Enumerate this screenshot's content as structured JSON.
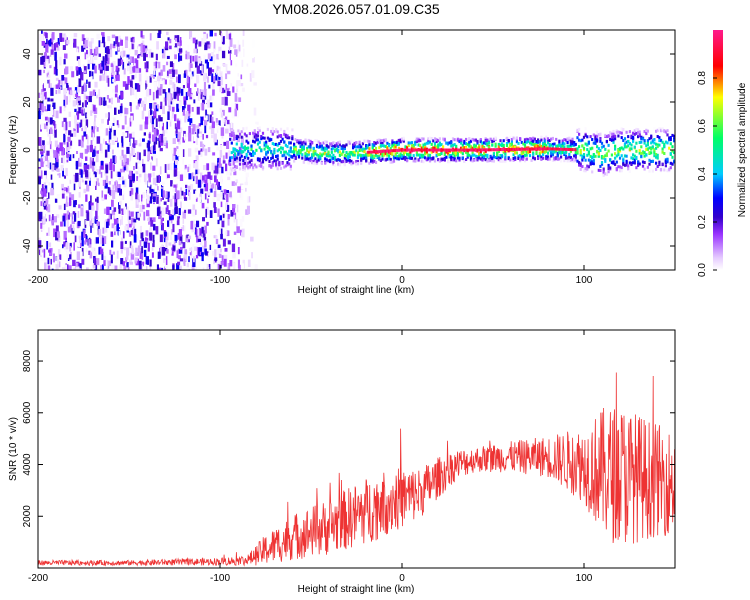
{
  "figure_title": "YM08.2026.057.01.09.C35",
  "chart_data": [
    {
      "type": "heatmap",
      "panel": "spectrogram",
      "title": "YM08.2026.057.01.09.C35",
      "xlabel": "Height of straight line (km)",
      "ylabel": "Frequency (Hz)",
      "xlim": [
        -200,
        150
      ],
      "ylim": [
        -50,
        50
      ],
      "xticks": [
        -200,
        -100,
        0,
        100
      ],
      "xtick_labels": [
        "-200",
        "-100",
        "0",
        "100"
      ],
      "yticks": [
        -40,
        -20,
        0,
        20,
        40
      ],
      "ytick_labels": [
        "-40",
        "-20",
        "0",
        "20",
        "40"
      ],
      "colorbar": {
        "label": "Normalized spectral amplitude",
        "range": [
          0.0,
          1.0
        ],
        "ticks": [
          0.0,
          0.2,
          0.4,
          0.6,
          0.8
        ],
        "tick_labels": [
          "0.0",
          "0.2",
          "0.4",
          "0.6",
          "0.8"
        ],
        "colormap": [
          "#ffffff",
          "#e6ccff",
          "#9933ff",
          "#3300cc",
          "#0000ff",
          "#00ccff",
          "#00ff66",
          "#ffff00",
          "#ff0000",
          "#ff1a8c"
        ]
      },
      "regions": [
        {
          "description": "broadband noise",
          "x_range": [
            -200,
            -85
          ],
          "freq_range": [
            -50,
            50
          ],
          "amplitude": [
            0.0,
            0.3
          ]
        },
        {
          "description": "narrowband signal near 0 Hz",
          "x_range": [
            -95,
            150
          ],
          "center_freq": [
            [
              -95,
              0
            ],
            [
              -80,
              0.5
            ],
            [
              -60,
              0
            ],
            [
              -40,
              -1.5
            ],
            [
              -20,
              -1
            ],
            [
              0,
              0
            ],
            [
              40,
              0
            ],
            [
              80,
              0.5
            ],
            [
              100,
              0
            ],
            [
              110,
              -2
            ],
            [
              120,
              0
            ],
            [
              150,
              0
            ]
          ],
          "peak_amplitude": 1.0
        }
      ]
    },
    {
      "type": "line",
      "panel": "snr",
      "xlabel": "Height of straight line (km)",
      "ylabel": "SNR (10 * v/v)",
      "xlim": [
        -200,
        150
      ],
      "ylim": [
        0,
        9200
      ],
      "xticks": [
        -200,
        -100,
        0,
        100
      ],
      "xtick_labels": [
        "-200",
        "-100",
        "0",
        "100"
      ],
      "yticks": [
        2000,
        4000,
        6000,
        8000
      ],
      "ytick_labels": [
        "2000",
        "4000",
        "6000",
        "8000"
      ],
      "series": [
        {
          "name": "SNR",
          "color": "#ee3333",
          "trend_x": [
            -200,
            -150,
            -100,
            -85,
            -75,
            -60,
            -40,
            -30,
            -20,
            -10,
            0,
            10,
            20,
            30,
            40,
            60,
            80,
            100,
            110,
            120,
            130,
            140,
            150
          ],
          "trend_y": [
            200,
            200,
            250,
            300,
            700,
            1200,
            1600,
            1900,
            2200,
            2500,
            2700,
            2900,
            3500,
            4000,
            4200,
            4300,
            4300,
            4000,
            3700,
            3600,
            3500,
            3400,
            3300
          ],
          "spread_y": [
            100,
            100,
            150,
            200,
            600,
            900,
            1100,
            1200,
            1300,
            1300,
            1200,
            1000,
            800,
            600,
            500,
            600,
            800,
            1500,
            2500,
            2800,
            2500,
            2200,
            2000
          ]
        }
      ]
    }
  ]
}
